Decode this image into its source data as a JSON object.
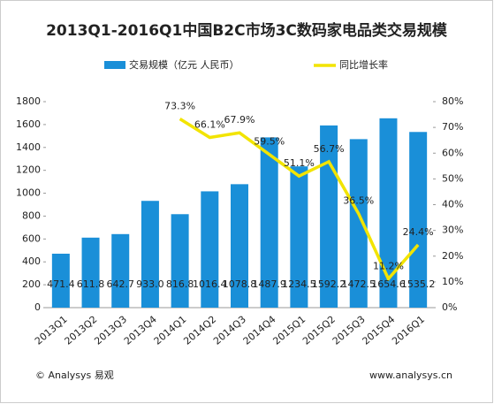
{
  "chart_data": {
    "type": "bar_line",
    "title": "2013Q1-2016Q1中国B2C市场3C数码家电品类交易规模",
    "categories": [
      "2013Q1",
      "2013Q2",
      "2013Q3",
      "2013Q4",
      "2014Q1",
      "2014Q2",
      "2014Q3",
      "2014Q4",
      "2015Q1",
      "2015Q2",
      "2015Q3",
      "2015Q4",
      "2016Q1"
    ],
    "series": [
      {
        "name": "交易规模（亿元 人民币）",
        "type": "bar",
        "color": "#1a8fd8",
        "values": [
          471.4,
          611.8,
          642.7,
          933.0,
          816.8,
          1016.4,
          1078.8,
          1487.9,
          1234.5,
          1592.2,
          1472.5,
          1654.6,
          1535.2
        ],
        "value_labels": [
          "471.4",
          "611.8",
          "642.7",
          "933.0",
          "816.8",
          "1016.4",
          "1078.8",
          "1487.9",
          "1234.5",
          "1592.2",
          "1472.5",
          "1654.6",
          "1535.2"
        ]
      },
      {
        "name": "同比增长率",
        "type": "line",
        "axis": "y2",
        "color": "#f2e400",
        "values": [
          null,
          null,
          null,
          null,
          73.3,
          66.1,
          67.9,
          59.5,
          51.1,
          56.7,
          36.5,
          11.2,
          24.4
        ],
        "value_labels": [
          null,
          null,
          null,
          null,
          "73.3%",
          "66.1%",
          "67.9%",
          "59.5%",
          "51.1%",
          "56.7%",
          "36.5%",
          "11.2%",
          "24.4%"
        ]
      }
    ],
    "ylim": [
      0,
      1800
    ],
    "yticks": [
      0,
      200,
      400,
      600,
      800,
      1000,
      1200,
      1400,
      1600,
      1800
    ],
    "y2lim": [
      0,
      80
    ],
    "y2ticks": [
      {
        "value": 0,
        "label": "0%"
      },
      {
        "value": 10,
        "label": "10%"
      },
      {
        "value": 20,
        "label": "20%"
      },
      {
        "value": 30,
        "label": "30%"
      },
      {
        "value": 40,
        "label": "40%"
      },
      {
        "value": 50,
        "label": "50%"
      },
      {
        "value": 60,
        "label": "60%"
      },
      {
        "value": 70,
        "label": "70%"
      },
      {
        "value": 80,
        "label": "80%"
      }
    ],
    "footer_left": "© Analysys 易观",
    "footer_right": "www.analysys.cn"
  }
}
